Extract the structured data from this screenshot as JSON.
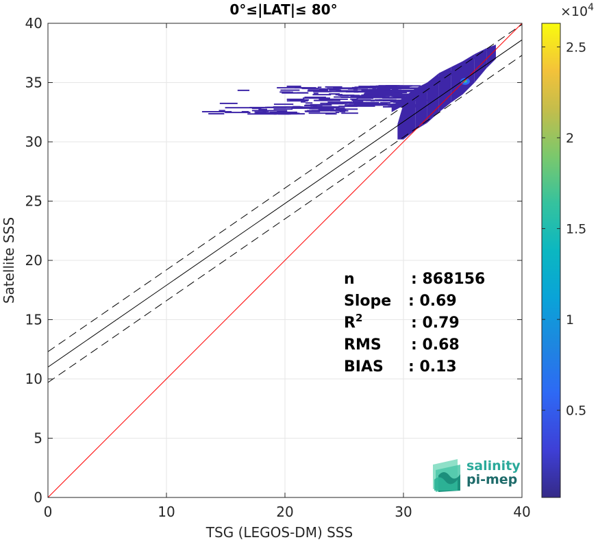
{
  "chart_data": {
    "type": "scatter",
    "subtype": "2d-density-histogram",
    "title": "0°≤|LAT|≤ 80°",
    "xlabel": "TSG (LEGOS-DM) SSS",
    "ylabel": "Satellite SSS",
    "xlim": [
      0,
      40
    ],
    "ylim": [
      0,
      40
    ],
    "xticks": [
      0,
      10,
      20,
      30,
      40
    ],
    "yticks": [
      0,
      5,
      10,
      15,
      20,
      25,
      30,
      35,
      40
    ],
    "grid": true,
    "lines": [
      {
        "name": "identity",
        "slope": 1.0,
        "intercept": 0.0,
        "color": "#ff0000",
        "style": "solid"
      },
      {
        "name": "regression",
        "slope": 0.69,
        "intercept": 11.0,
        "color": "#000000",
        "style": "solid"
      },
      {
        "name": "regression-plus",
        "slope": 0.69,
        "intercept": 12.3,
        "color": "#000000",
        "style": "dashed"
      },
      {
        "name": "regression-minus",
        "slope": 0.69,
        "intercept": 9.7,
        "color": "#000000",
        "style": "dashed"
      }
    ],
    "density_peak": {
      "x": 35.2,
      "y": 35.1
    },
    "stats": [
      {
        "label": "n",
        "value": ": 868156"
      },
      {
        "label": "Slope",
        "value": ": 0.69"
      },
      {
        "label": "R",
        "sup": "2",
        "value": ": 0.79"
      },
      {
        "label": "RMS",
        "value": ": 0.68"
      },
      {
        "label": "BIAS",
        "value": ": 0.13"
      }
    ],
    "colorbar": {
      "exponent_label": "×10",
      "exponent_power": "4",
      "range": [
        0.02,
        2.63
      ],
      "ticks": [
        {
          "value": 0.5,
          "label": "0.5"
        },
        {
          "value": 1.0,
          "label": "1"
        },
        {
          "value": 1.5,
          "label": "1.5"
        },
        {
          "value": 2.0,
          "label": "2"
        },
        {
          "value": 2.5,
          "label": "2.5"
        }
      ],
      "colormap": "parula"
    }
  },
  "logo": {
    "line1": "salinity",
    "line2": "pi-mep"
  },
  "colors": {
    "identity_line": "#ff0000",
    "density_low": "#3e26a8",
    "logo_teal": "#1f9e8f"
  }
}
